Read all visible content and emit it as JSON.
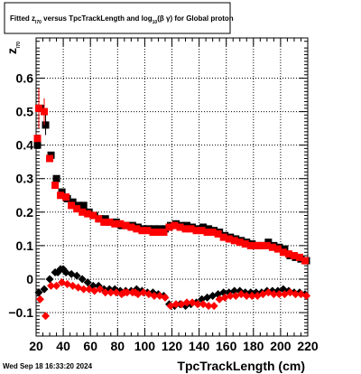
{
  "chart_data": {
    "type": "scatter",
    "title": {
      "prefix": "Fitted  z",
      "sub1": "I70",
      "middle": "  versus TpcTrackLength and log",
      "sub2": "10",
      "suffix": "(β  γ) for Global proton"
    },
    "xlabel": "TpcTrackLength (cm)",
    "ylabel": {
      "main": "z",
      "sub": "I70"
    },
    "footer": "Wed Sep 18 16:33:20 2024",
    "xlim": [
      20,
      220
    ],
    "ylim": [
      -0.17,
      0.72
    ],
    "xticks": [
      20,
      40,
      60,
      80,
      100,
      120,
      140,
      160,
      180,
      200,
      220
    ],
    "yticks": [
      -0.1,
      0,
      0.1,
      0.2,
      0.3,
      0.4,
      0.5,
      0.6
    ],
    "ytick_labels": [
      "−0.1",
      "0",
      "0.1",
      "0.2",
      "0.3",
      "0.4",
      "0.5",
      "0.6"
    ],
    "grid": true,
    "colors": {
      "black_series": "#000000",
      "red_series": "#ff0000"
    },
    "series": [
      {
        "marker": "square",
        "color": "#000000",
        "x": [
          23,
          27,
          31,
          35,
          39,
          43,
          47,
          51,
          55,
          59,
          63,
          67,
          71,
          75,
          79,
          83,
          87,
          91,
          95,
          99,
          103,
          107,
          111,
          115,
          119,
          123,
          127,
          131,
          135,
          139,
          143,
          147,
          151,
          155,
          159,
          163,
          167,
          171,
          175,
          179,
          183,
          187,
          191,
          195,
          199,
          203,
          207,
          211,
          215,
          219
        ],
        "y": [
          0.51,
          0.46,
          0.37,
          0.3,
          0.26,
          0.24,
          0.23,
          0.22,
          0.22,
          0.2,
          0.19,
          0.18,
          0.18,
          0.17,
          0.17,
          0.16,
          0.16,
          0.16,
          0.155,
          0.15,
          0.15,
          0.15,
          0.15,
          0.15,
          0.16,
          0.165,
          0.16,
          0.16,
          0.155,
          0.15,
          0.155,
          0.15,
          0.145,
          0.14,
          0.13,
          0.125,
          0.12,
          0.115,
          0.11,
          0.105,
          0.1,
          0.1,
          0.11,
          0.1,
          0.095,
          0.09,
          0.07,
          0.065,
          0.06,
          0.055
        ]
      },
      {
        "marker": "square",
        "color": "#ff0000",
        "x": [
          22,
          26,
          30,
          34,
          38,
          42,
          46,
          50,
          54,
          58,
          62,
          66,
          70,
          74,
          78,
          82,
          86,
          90,
          94,
          98,
          102,
          106,
          110,
          114,
          118,
          122,
          126,
          130,
          134,
          138,
          142,
          146,
          150,
          154,
          158,
          162,
          166,
          170,
          174,
          178,
          182,
          186,
          190,
          194,
          198,
          202,
          206,
          210,
          214,
          218
        ],
        "y": [
          0.51,
          0.5,
          0.36,
          0.28,
          0.25,
          0.245,
          0.22,
          0.21,
          0.2,
          0.195,
          0.19,
          0.18,
          0.17,
          0.17,
          0.165,
          0.165,
          0.16,
          0.155,
          0.15,
          0.145,
          0.145,
          0.14,
          0.14,
          0.14,
          0.155,
          0.16,
          0.155,
          0.15,
          0.15,
          0.145,
          0.145,
          0.14,
          0.14,
          0.135,
          0.125,
          0.12,
          0.115,
          0.11,
          0.105,
          0.1,
          0.1,
          0.1,
          0.1,
          0.095,
          0.09,
          0.08,
          0.075,
          0.07,
          0.065,
          0.055
        ]
      },
      {
        "marker": "diamond",
        "color": "#000000",
        "x": [
          22,
          26,
          30,
          34,
          38,
          42,
          46,
          50,
          54,
          58,
          62,
          66,
          70,
          74,
          78,
          82,
          86,
          90,
          94,
          98,
          102,
          106,
          110,
          114,
          118,
          122,
          126,
          130,
          134,
          138,
          142,
          146,
          150,
          154,
          158,
          162,
          166,
          170,
          174,
          178,
          182,
          186,
          190,
          194,
          198,
          202,
          206,
          210,
          214,
          218
        ],
        "y": [
          -0.04,
          -0.03,
          0.0,
          0.02,
          0.03,
          0.02,
          0.015,
          0.01,
          0.0,
          -0.01,
          -0.02,
          -0.02,
          -0.03,
          -0.03,
          -0.03,
          -0.035,
          -0.035,
          -0.035,
          -0.03,
          -0.035,
          -0.04,
          -0.04,
          -0.045,
          -0.05,
          -0.075,
          -0.08,
          -0.075,
          -0.08,
          -0.075,
          -0.07,
          -0.06,
          -0.055,
          -0.05,
          -0.045,
          -0.04,
          -0.04,
          -0.035,
          -0.035,
          -0.04,
          -0.04,
          -0.04,
          -0.04,
          -0.035,
          -0.035,
          -0.035,
          -0.03,
          -0.035,
          -0.04,
          -0.04,
          -0.045
        ]
      },
      {
        "marker": "diamond",
        "color": "#ff0000",
        "x": [
          23,
          27,
          31,
          35,
          39,
          43,
          47,
          51,
          55,
          59,
          63,
          67,
          71,
          75,
          79,
          83,
          87,
          91,
          95,
          99,
          103,
          107,
          111,
          115,
          119,
          123,
          127,
          131,
          135,
          139,
          143,
          147,
          151,
          155,
          159,
          163,
          167,
          171,
          175,
          179,
          183,
          187,
          191,
          195,
          199,
          203,
          207,
          211,
          215,
          219
        ],
        "y": [
          -0.06,
          -0.11,
          -0.02,
          -0.02,
          -0.01,
          -0.015,
          -0.02,
          -0.025,
          -0.03,
          -0.03,
          -0.035,
          -0.03,
          -0.04,
          -0.04,
          -0.04,
          -0.045,
          -0.04,
          -0.04,
          -0.045,
          -0.04,
          -0.045,
          -0.05,
          -0.05,
          -0.055,
          -0.08,
          -0.075,
          -0.075,
          -0.07,
          -0.07,
          -0.075,
          -0.075,
          -0.08,
          -0.08,
          -0.06,
          -0.055,
          -0.05,
          -0.05,
          -0.045,
          -0.05,
          -0.05,
          -0.05,
          -0.045,
          -0.04,
          -0.045,
          -0.045,
          -0.045,
          -0.04,
          -0.045,
          -0.045,
          -0.05
        ]
      }
    ],
    "extra_points": [
      {
        "x": 40,
        "y": 0.03,
        "color": "#000000",
        "marker": "diamond"
      },
      {
        "x": 36,
        "y": 0.02,
        "color": "#000000",
        "marker": "diamond"
      },
      {
        "x": 21,
        "y": 0.4,
        "color": "#000000",
        "marker": "square"
      },
      {
        "x": 21,
        "y": 0.42,
        "color": "#ff0000",
        "marker": "square"
      },
      {
        "x": 85,
        "y": -0.04,
        "color": "#ff0000",
        "marker": "diamond"
      },
      {
        "x": 93,
        "y": -0.04,
        "color": "#ff0000",
        "marker": "diamond"
      }
    ]
  }
}
